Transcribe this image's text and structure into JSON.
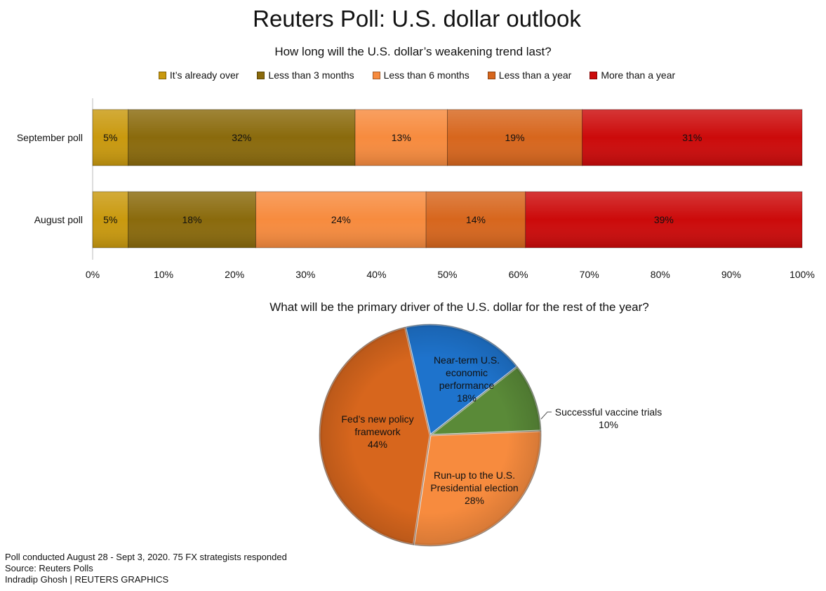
{
  "title": "Reuters Poll: U.S. dollar outlook",
  "bar_question": "How long will the U.S. dollar’s weakening trend last?",
  "pie_question": "What will be the primary driver of the U.S. dollar for the rest of the year?",
  "colors": {
    "already_over": "#c9990e",
    "less_3m": "#8a6a0c",
    "less_6m": "#f78b3e",
    "less_year": "#d7661d",
    "more_year": "#cc0a0a",
    "pie_blue": "#1e73cc",
    "pie_green": "#5a8a38"
  },
  "chart_data": [
    {
      "type": "bar",
      "orientation": "horizontal-stacked-100",
      "categories": [
        "September poll",
        "August poll"
      ],
      "series": [
        {
          "name": "It’s already over",
          "values": [
            5,
            5
          ],
          "labels": [
            "5%",
            "5%"
          ],
          "color": "#c9990e"
        },
        {
          "name": "Less than 3 months",
          "values": [
            32,
            18
          ],
          "labels": [
            "32%",
            "18%"
          ],
          "color": "#8a6a0c"
        },
        {
          "name": "Less than 6 months",
          "values": [
            13,
            24
          ],
          "labels": [
            "13%",
            "24%"
          ],
          "color": "#f78b3e"
        },
        {
          "name": "Less than a year",
          "values": [
            19,
            14
          ],
          "labels": [
            "19%",
            "14%"
          ],
          "color": "#d7661d"
        },
        {
          "name": "More than a year",
          "values": [
            31,
            39
          ],
          "labels": [
            "31%",
            "39%"
          ],
          "color": "#cc0a0a"
        }
      ],
      "xlim": [
        0,
        100
      ],
      "ticks": [
        "0%",
        "10%",
        "20%",
        "30%",
        "40%",
        "50%",
        "60%",
        "70%",
        "80%",
        "90%",
        "100%"
      ],
      "legend": "top"
    },
    {
      "type": "pie",
      "slices": [
        {
          "lines": [
            "Near-term U.S.",
            "economic",
            "performance",
            "18%"
          ],
          "value": 18,
          "color": "#1e73cc"
        },
        {
          "lines": [
            "Successful vaccine trials",
            "10%"
          ],
          "value": 10,
          "color": "#5a8a38"
        },
        {
          "lines": [
            "Run-up to the U.S.",
            "Presidential election",
            "28%"
          ],
          "value": 28,
          "color": "#f78b3e"
        },
        {
          "lines": [
            "Fed’s new policy",
            "framework",
            "44%"
          ],
          "value": 44,
          "color": "#d7661d"
        }
      ]
    }
  ],
  "footer": {
    "note": "Poll conducted August 28 - Sept 3, 2020. 75 FX strategists responded",
    "source": "Source: Reuters Polls",
    "credit": "Indradip Ghosh | REUTERS GRAPHICS"
  }
}
